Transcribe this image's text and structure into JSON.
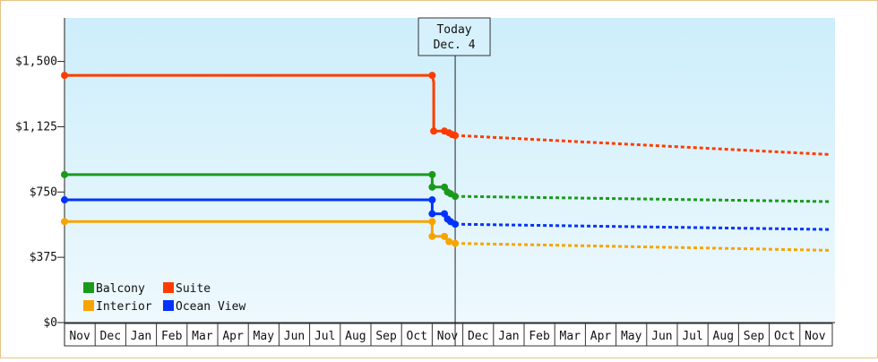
{
  "colors": {
    "balcony": "#1a9a1a",
    "suite": "#ff3c00",
    "interior": "#f7a400",
    "ocean_view": "#0033ff",
    "background_top": "#cdeefb",
    "background_bottom": "#eef9fd",
    "frame_border": "#e8c486"
  },
  "today": {
    "line1": "Today",
    "line2": "Dec. 4"
  },
  "chart_data": {
    "type": "line",
    "title": "",
    "xlabel": "",
    "ylabel": "",
    "y_ticks": [
      "$0",
      "$375",
      "$750",
      "$1,125",
      "$1,500"
    ],
    "y_tick_values": [
      0,
      375,
      750,
      1125,
      1500
    ],
    "ylim": [
      0,
      1750
    ],
    "x_ticks": [
      "Nov",
      "Dec",
      "Jan",
      "Feb",
      "Mar",
      "Apr",
      "May",
      "Jun",
      "Jul",
      "Aug",
      "Sep",
      "Oct",
      "Nov",
      "Dec",
      "Jan",
      "Feb",
      "Mar",
      "Apr",
      "May",
      "Jun",
      "Jul",
      "Aug",
      "Sep",
      "Oct",
      "Nov"
    ],
    "x_unit": "months since start of axis (first Nov = 0)",
    "today_x": 12.75,
    "grid": false,
    "legend": "bottom-left",
    "series": [
      {
        "name": "Balcony",
        "color_key": "balcony",
        "history": [
          [
            0,
            850
          ],
          [
            12.0,
            850
          ],
          [
            12.0,
            778
          ],
          [
            12.4,
            778
          ],
          [
            12.45,
            760
          ],
          [
            12.6,
            740
          ],
          [
            12.75,
            725
          ]
        ],
        "markers": [
          [
            0,
            850
          ],
          [
            12.0,
            850
          ],
          [
            12.0,
            778
          ],
          [
            12.4,
            778
          ],
          [
            12.5,
            750
          ],
          [
            12.6,
            740
          ],
          [
            12.75,
            725
          ]
        ],
        "forecast": [
          [
            12.75,
            725
          ],
          [
            25.0,
            695
          ]
        ]
      },
      {
        "name": "Suite",
        "color_key": "suite",
        "history": [
          [
            0,
            1420
          ],
          [
            12.0,
            1420
          ],
          [
            12.05,
            1380
          ],
          [
            12.05,
            1100
          ],
          [
            12.4,
            1100
          ],
          [
            12.55,
            1085
          ],
          [
            12.75,
            1075
          ]
        ],
        "markers": [
          [
            0,
            1420
          ],
          [
            12.0,
            1420
          ],
          [
            12.05,
            1100
          ],
          [
            12.4,
            1100
          ],
          [
            12.55,
            1090
          ],
          [
            12.65,
            1080
          ],
          [
            12.75,
            1075
          ]
        ],
        "forecast": [
          [
            12.75,
            1075
          ],
          [
            25.0,
            965
          ]
        ]
      },
      {
        "name": "Interior",
        "color_key": "interior",
        "history": [
          [
            0,
            580
          ],
          [
            12.0,
            580
          ],
          [
            12.0,
            495
          ],
          [
            12.4,
            495
          ],
          [
            12.5,
            470
          ],
          [
            12.75,
            455
          ]
        ],
        "markers": [
          [
            0,
            580
          ],
          [
            12.0,
            580
          ],
          [
            12.0,
            495
          ],
          [
            12.4,
            495
          ],
          [
            12.55,
            465
          ],
          [
            12.75,
            455
          ]
        ],
        "forecast": [
          [
            12.75,
            455
          ],
          [
            25.0,
            415
          ]
        ]
      },
      {
        "name": "Ocean View",
        "color_key": "ocean_view",
        "history": [
          [
            0,
            705
          ],
          [
            12.0,
            705
          ],
          [
            12.0,
            625
          ],
          [
            12.4,
            625
          ],
          [
            12.5,
            590
          ],
          [
            12.6,
            580
          ],
          [
            12.75,
            565
          ]
        ],
        "markers": [
          [
            0,
            705
          ],
          [
            12.0,
            705
          ],
          [
            12.0,
            625
          ],
          [
            12.4,
            625
          ],
          [
            12.5,
            595
          ],
          [
            12.6,
            580
          ],
          [
            12.75,
            565
          ]
        ],
        "forecast": [
          [
            12.75,
            565
          ],
          [
            25.0,
            535
          ]
        ]
      }
    ]
  }
}
